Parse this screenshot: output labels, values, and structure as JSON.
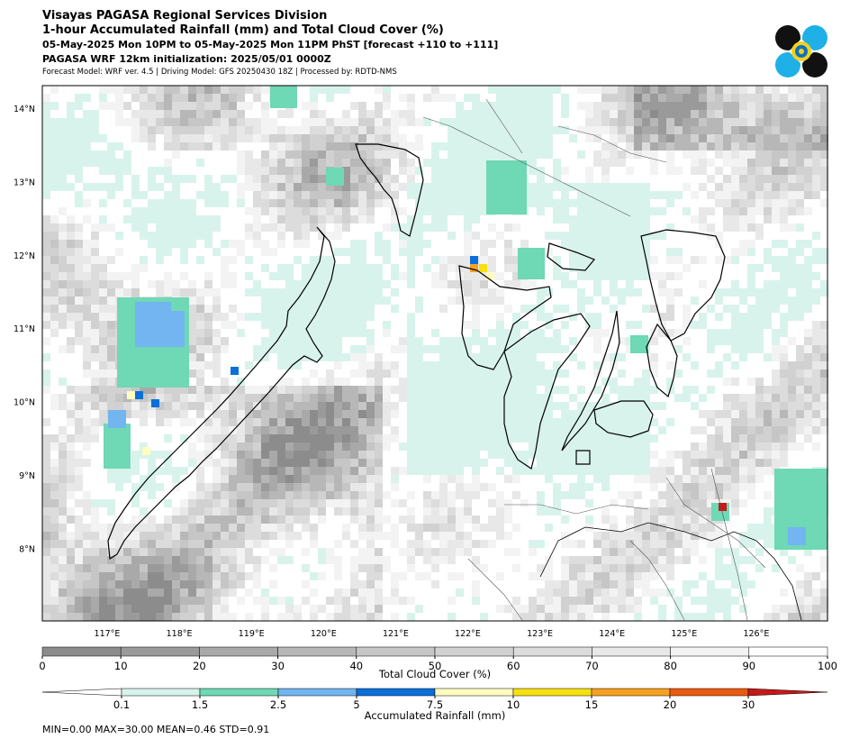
{
  "header": {
    "office": "Visayas PAGASA Regional Services Division",
    "product": "1-hour Accumulated Rainfall (mm) and Total Cloud Cover (%)",
    "valid_time": "05-May-2025 Mon 10PM to 05-May-2025 Mon 11PM PhST [forecast +110 to +111]",
    "init": "PAGASA WRF 12km initialization: 2025/05/01 0000Z",
    "meta": "Forecast Model: WRF ver. 4.5 | Driving Model: GFS 20250430 18Z | Processed by: RDTD-NMS"
  },
  "map": {
    "lon_labels": [
      "117°E",
      "118°E",
      "119°E",
      "120°E",
      "121°E",
      "122°E",
      "123°E",
      "124°E",
      "125°E",
      "126°E"
    ],
    "lat_labels": [
      "14°N",
      "13°N",
      "12°N",
      "11°N",
      "10°N",
      "9°N",
      "8°N"
    ]
  },
  "cloud_bar": {
    "title": "Total Cloud Cover (%)",
    "ticks": [
      "0",
      "10",
      "20",
      "30",
      "40",
      "50",
      "60",
      "70",
      "80",
      "90",
      "100"
    ],
    "colors": [
      "#8c8c8c",
      "#9a9a9a",
      "#a9a9a9",
      "#b7b7b7",
      "#c6c6c6",
      "#d1d1d1",
      "#dcdcdc",
      "#e8e8e8",
      "#f3f3f3",
      "#ffffff"
    ]
  },
  "rain_bar": {
    "title": "Accumulated Rainfall (mm)",
    "ticks": [
      "0.1",
      "1.5",
      "2.5",
      "5",
      "7.5",
      "10",
      "15",
      "20",
      "30"
    ],
    "colors": [
      "#ffffff",
      "#d8f3ec",
      "#6fd8b4",
      "#72b5f0",
      "#0a6fd8",
      "#fffdc0",
      "#f8e010",
      "#f7a020",
      "#eb5a10",
      "#c81818"
    ]
  },
  "stats": "MIN=0.00   MAX=30.00   MEAN=0.46   STD=0.91"
}
